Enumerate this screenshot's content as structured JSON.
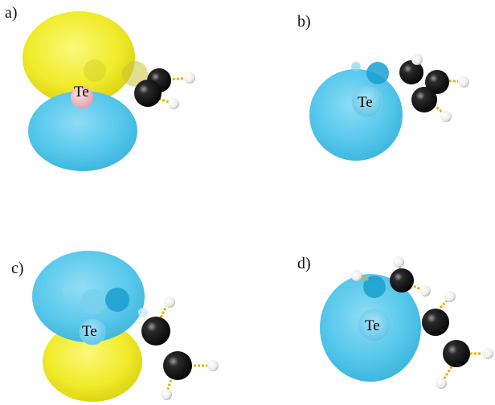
{
  "figure": {
    "panels": [
      {
        "id": "a",
        "label": "a)",
        "center_atom": "Te",
        "lobes": [
          "yellow",
          "blue"
        ]
      },
      {
        "id": "b",
        "label": "b)",
        "center_atom": "Te",
        "lobes": [
          "blue"
        ]
      },
      {
        "id": "c",
        "label": "c)",
        "center_atom": "Te",
        "lobes": [
          "blue",
          "yellow"
        ]
      },
      {
        "id": "d",
        "label": "d)",
        "center_atom": "Te",
        "lobes": [
          "blue"
        ]
      }
    ],
    "colors": {
      "positive_lobe": "#f1ec2c",
      "negative_lobe": "#56c8ec",
      "carbon": "#111111",
      "hydrogen": "#f4f4f4",
      "bond": "#e9b000",
      "te_atom": "#f3b6c0"
    }
  }
}
